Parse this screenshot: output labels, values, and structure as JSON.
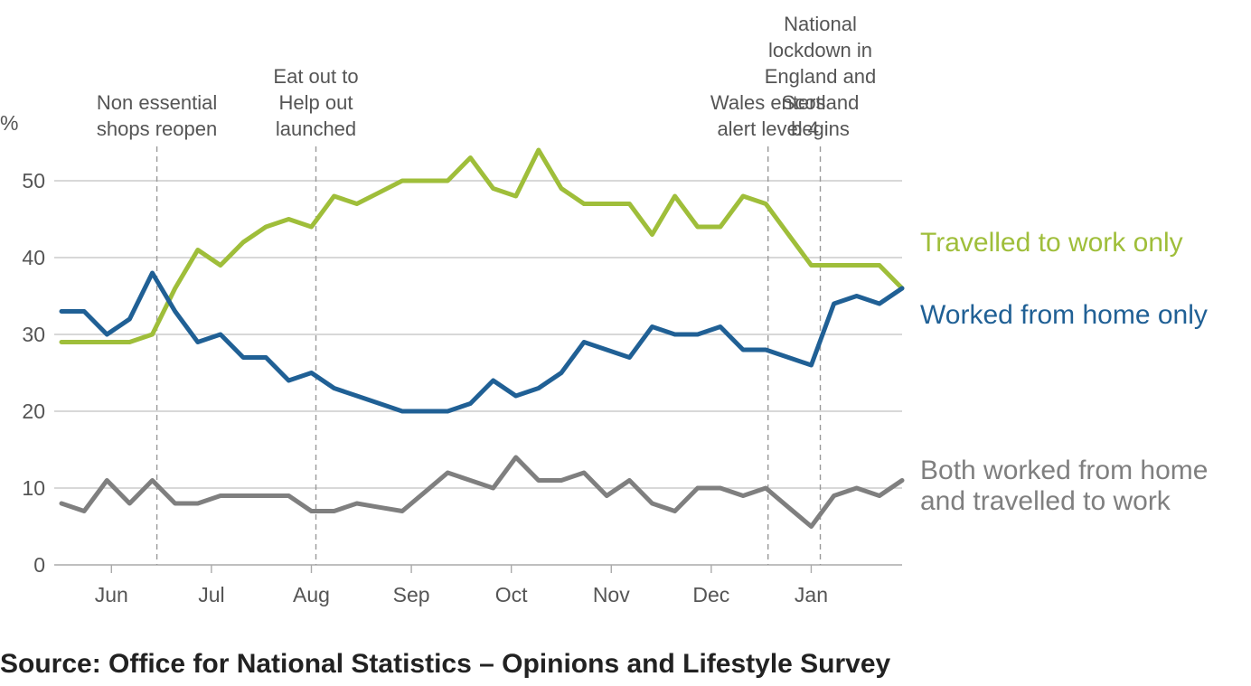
{
  "source": "Source: Office for National Statistics – Opinions and Lifestyle Survey",
  "chart_data": {
    "type": "line",
    "ylabel": "%",
    "ylim": [
      0,
      55
    ],
    "yticks": [
      0,
      10,
      20,
      30,
      40,
      50
    ],
    "x_range": [
      0,
      37
    ],
    "month_labels": [
      {
        "label": "Jun",
        "x": 2.2
      },
      {
        "label": "Jul",
        "x": 6.6
      },
      {
        "label": "Aug",
        "x": 11.0
      },
      {
        "label": "Sep",
        "x": 15.4
      },
      {
        "label": "Oct",
        "x": 19.8
      },
      {
        "label": "Nov",
        "x": 24.2
      },
      {
        "label": "Dec",
        "x": 28.6
      },
      {
        "label": "Jan",
        "x": 33.0
      }
    ],
    "x": [
      0,
      1,
      2,
      3,
      4,
      5,
      6,
      7,
      8,
      9,
      10,
      11,
      12,
      13,
      14,
      15,
      16,
      17,
      18,
      19,
      20,
      21,
      22,
      23,
      24,
      25,
      26,
      27,
      28,
      29,
      30,
      31,
      32,
      33,
      34,
      35,
      36,
      37
    ],
    "series": [
      {
        "name": "Travelled to work only",
        "color": "#9fbe3a",
        "values": [
          29,
          29,
          29,
          29,
          30,
          36,
          41,
          39,
          42,
          44,
          45,
          44,
          48,
          47,
          48.5,
          50,
          50,
          50,
          53,
          49,
          48,
          54,
          49,
          47,
          47,
          47,
          43,
          48,
          44,
          44,
          48,
          47,
          43,
          39,
          39,
          39,
          39,
          36
        ]
      },
      {
        "name": "Worked from home only",
        "color": "#206095",
        "values": [
          33,
          33,
          30,
          32,
          38,
          33,
          29,
          30,
          27,
          27,
          24,
          25,
          23,
          22,
          21,
          20,
          20,
          20,
          21,
          24,
          22,
          23,
          25,
          29,
          28,
          27,
          31,
          30,
          30,
          31,
          28,
          28,
          27,
          26,
          34,
          35,
          34,
          36
        ]
      },
      {
        "name": "Both worked from home and travelled to work",
        "color": "#7f7f7f",
        "values": [
          8,
          7,
          11,
          8,
          11,
          8,
          8,
          9,
          9,
          9,
          9,
          7,
          7,
          8,
          7.5,
          7,
          9.5,
          12,
          11,
          10,
          14,
          11,
          11,
          12,
          9,
          11,
          8,
          7,
          10,
          10,
          9,
          10,
          7.5,
          5,
          9,
          10,
          9,
          11
        ]
      }
    ],
    "label_lines": [
      [
        "Travelled to work only"
      ],
      [
        "Worked from home only"
      ],
      [
        "Both worked from home",
        "and travelled to work"
      ]
    ],
    "annotations": [
      {
        "x": 4.2,
        "lines": [
          "Non essential",
          "shops reopen"
        ]
      },
      {
        "x": 11.2,
        "lines": [
          "Eat out to",
          "Help out",
          "launched"
        ]
      },
      {
        "x": 31.1,
        "lines": [
          "Wales enters",
          "alert level 4"
        ]
      },
      {
        "x": 33.4,
        "lines": [
          "National",
          "lockdown in",
          "England and",
          "Scotland",
          "begins"
        ]
      }
    ]
  }
}
